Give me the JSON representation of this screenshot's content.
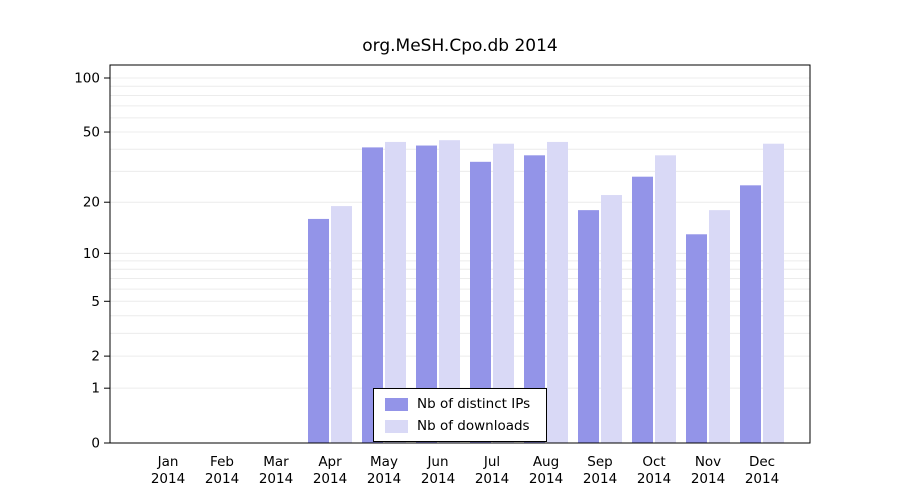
{
  "chart_data": {
    "type": "bar",
    "title": "org.MeSH.Cpo.db 2014",
    "categories": [
      "Jan 2014",
      "Feb 2014",
      "Mar 2014",
      "Apr 2014",
      "May 2014",
      "Jun 2014",
      "Jul 2014",
      "Aug 2014",
      "Sep 2014",
      "Oct 2014",
      "Nov 2014",
      "Dec 2014"
    ],
    "series": [
      {
        "name": "Nb of distinct IPs",
        "color": "#9394e8",
        "values": [
          0,
          0,
          0,
          16,
          41,
          42,
          34,
          37,
          18,
          28,
          13,
          25
        ]
      },
      {
        "name": "Nb of downloads",
        "color": "#d9d9f6",
        "values": [
          0,
          0,
          0,
          19,
          44,
          45,
          43,
          44,
          22,
          37,
          18,
          43
        ]
      }
    ],
    "y_axis": {
      "ticks": [
        0,
        1,
        2,
        5,
        10,
        20,
        50,
        100
      ],
      "scale": "log1p",
      "max": 100,
      "min": 0
    },
    "grid": true,
    "legend_position": "bottom-center-inside",
    "xlabel": "",
    "ylabel": ""
  },
  "colors": {
    "grid": "#ececec",
    "axis": "#000000",
    "background": "#ffffff",
    "text": "#000000"
  }
}
